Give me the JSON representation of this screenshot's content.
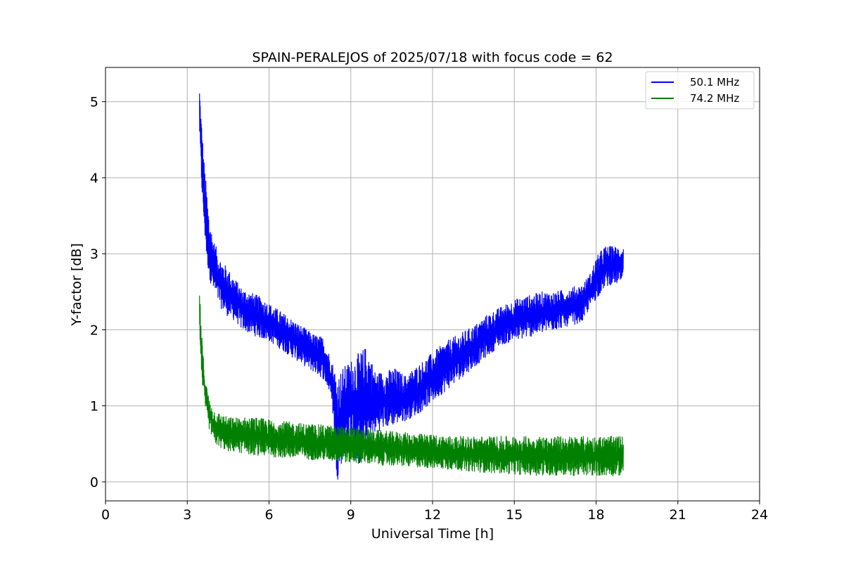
{
  "chart_data": {
    "type": "line",
    "title": "SPAIN-PERALEJOS of 2025/07/18 with focus code = 62",
    "xlabel": "Universal Time [h]",
    "ylabel": "Y-factor [dB]",
    "xlim": [
      0,
      24
    ],
    "ylim": [
      -0.25,
      5.45
    ],
    "xticks": [
      0,
      3,
      6,
      9,
      12,
      15,
      18,
      21,
      24
    ],
    "yticks": [
      0,
      1,
      2,
      3,
      4,
      5
    ],
    "grid": true,
    "legend_position": "top-right",
    "series": [
      {
        "name": "50.1 MHz",
        "color": "#0000ff",
        "x": [
          3.45,
          3.5,
          3.6,
          3.7,
          3.8,
          3.9,
          4.0,
          4.2,
          4.4,
          4.6,
          4.8,
          5.0,
          5.3,
          5.6,
          6.0,
          6.4,
          6.8,
          7.2,
          7.6,
          8.0,
          8.3,
          8.5,
          8.7,
          9.0,
          9.3,
          9.6,
          9.9,
          10.2,
          10.6,
          11.0,
          11.5,
          12.0,
          12.5,
          13.0,
          13.5,
          14.0,
          14.5,
          15.0,
          15.5,
          16.0,
          16.5,
          17.0,
          17.5,
          17.8,
          18.0,
          18.3,
          18.6,
          19.0
        ],
        "upper": [
          5.2,
          4.9,
          4.3,
          3.9,
          3.5,
          3.3,
          3.15,
          2.95,
          2.85,
          2.75,
          2.65,
          2.55,
          2.5,
          2.45,
          2.35,
          2.25,
          2.15,
          2.05,
          1.95,
          1.9,
          1.6,
          1.4,
          1.5,
          1.6,
          1.7,
          1.8,
          1.45,
          1.45,
          1.5,
          1.4,
          1.55,
          1.7,
          1.85,
          1.95,
          2.05,
          2.2,
          2.3,
          2.4,
          2.45,
          2.5,
          2.5,
          2.55,
          2.6,
          2.75,
          2.95,
          3.1,
          3.1,
          3.1
        ],
        "lower": [
          4.6,
          4.0,
          3.4,
          2.95,
          2.7,
          2.55,
          2.45,
          2.3,
          2.2,
          2.15,
          2.1,
          2.0,
          1.95,
          1.9,
          1.85,
          1.75,
          1.65,
          1.55,
          1.45,
          1.35,
          1.1,
          0.0,
          0.3,
          0.6,
          0.2,
          0.4,
          0.65,
          0.7,
          0.75,
          0.8,
          0.9,
          1.05,
          1.2,
          1.35,
          1.5,
          1.65,
          1.8,
          1.85,
          1.9,
          1.95,
          2.0,
          2.05,
          2.1,
          2.3,
          2.4,
          2.55,
          2.6,
          2.6
        ]
      },
      {
        "name": "74.2 MHz",
        "color": "#008000",
        "x": [
          3.45,
          3.5,
          3.6,
          3.7,
          3.8,
          3.9,
          4.0,
          4.2,
          4.5,
          5.0,
          5.5,
          6.0,
          7.0,
          8.0,
          9.0,
          10.0,
          11.0,
          12.0,
          13.0,
          14.0,
          15.0,
          16.0,
          17.0,
          18.0,
          19.0
        ],
        "upper": [
          2.6,
          2.1,
          1.6,
          1.3,
          1.1,
          1.0,
          0.95,
          0.9,
          0.85,
          0.85,
          0.85,
          0.82,
          0.78,
          0.75,
          0.72,
          0.68,
          0.65,
          0.62,
          0.6,
          0.6,
          0.6,
          0.6,
          0.6,
          0.6,
          0.6
        ],
        "lower": [
          2.0,
          1.5,
          1.1,
          0.85,
          0.7,
          0.6,
          0.5,
          0.45,
          0.4,
          0.38,
          0.35,
          0.33,
          0.3,
          0.28,
          0.25,
          0.22,
          0.2,
          0.18,
          0.15,
          0.12,
          0.1,
          0.08,
          0.08,
          0.08,
          0.08
        ]
      }
    ]
  }
}
